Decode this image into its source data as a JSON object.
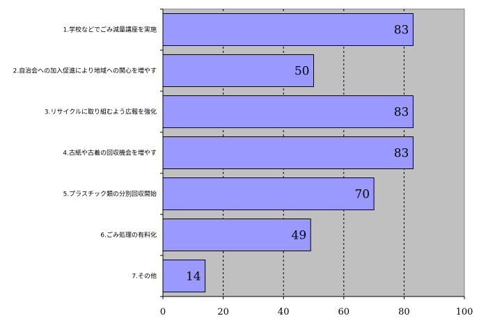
{
  "chart_data": {
    "type": "bar",
    "orientation": "horizontal",
    "categories": [
      "1.学校などでごみ減量講座を実施",
      "2.自治会への加入促進により地域への関心を増やす",
      "3.リサイクルに取り組むよう広報を強化",
      "4.古紙や古着の回収機会を増やす",
      "5.プラスチック類の分別回収開始",
      "6.ごみ処理の有料化",
      "7.その他"
    ],
    "values": [
      83,
      50,
      83,
      83,
      70,
      49,
      14
    ],
    "xlim": [
      0,
      100
    ],
    "xticks": [
      0,
      20,
      40,
      60,
      80,
      100
    ],
    "grid": "vertical dashed",
    "colors": {
      "bar": "#9999ff",
      "plot_bg": "#c0c0c0",
      "bar_edge": "#000000"
    }
  }
}
